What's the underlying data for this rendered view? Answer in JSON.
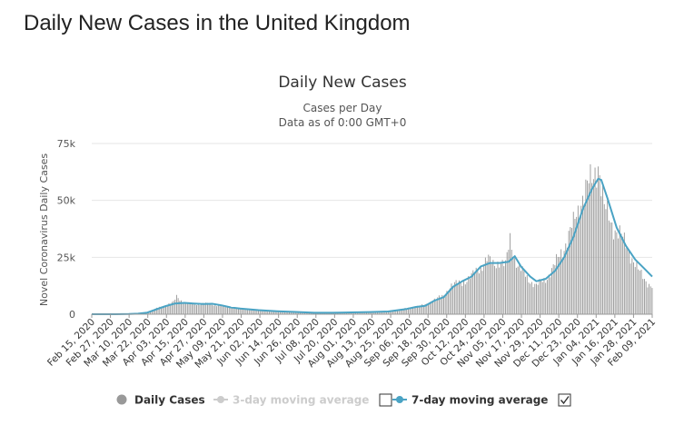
{
  "page": {
    "heading": "Daily New Cases in the United Kingdom"
  },
  "chart_data": {
    "type": "bar",
    "title": "Daily New Cases",
    "subtitle_lines": [
      "Cases per Day",
      "Data as of 0:00 GMT+0"
    ],
    "xlabel": "",
    "ylabel": "Novel Coronavirus Daily Cases",
    "ylim": [
      0,
      75000
    ],
    "y_ticks": [
      0,
      25000,
      50000,
      75000
    ],
    "y_tick_labels": [
      "0",
      "25k",
      "50k",
      "75k"
    ],
    "x_range": [
      "2020-02-15",
      "2021-02-12"
    ],
    "x_tick_labels": [
      "Feb 15, 2020",
      "Feb 27, 2020",
      "Mar 10, 2020",
      "Mar 22, 2020",
      "Apr 03, 2020",
      "Apr 15, 2020",
      "Apr 27, 2020",
      "May 09, 2020",
      "May 21, 2020",
      "Jun 02, 2020",
      "Jun 14, 2020",
      "Jun 26, 2020",
      "Jul 08, 2020",
      "Jul 20, 2020",
      "Aug 01, 2020",
      "Aug 13, 2020",
      "Aug 25, 2020",
      "Sep 06, 2020",
      "Sep 18, 2020",
      "Sep 30, 2020",
      "Oct 12, 2020",
      "Oct 24, 2020",
      "Nov 05, 2020",
      "Nov 17, 2020",
      "Nov 29, 2020",
      "Dec 11, 2020",
      "Dec 23, 2020",
      "Jan 04, 2021",
      "Jan 16, 2021",
      "Jan 28, 2021",
      "Feb 09, 2021"
    ],
    "grid": true,
    "legend_position": "bottom-center",
    "series": [
      {
        "name": "Daily Cases",
        "kind": "bar",
        "color": "#999999",
        "visible": true,
        "points": [
          [
            "2020-02-15",
            0
          ],
          [
            "2020-03-01",
            20
          ],
          [
            "2020-03-10",
            100
          ],
          [
            "2020-03-15",
            300
          ],
          [
            "2020-03-22",
            900
          ],
          [
            "2020-03-28",
            2500
          ],
          [
            "2020-04-03",
            4000
          ],
          [
            "2020-04-08",
            5200
          ],
          [
            "2020-04-10",
            7800
          ],
          [
            "2020-04-15",
            4900
          ],
          [
            "2020-04-22",
            4500
          ],
          [
            "2020-04-27",
            4600
          ],
          [
            "2020-05-02",
            4500
          ],
          [
            "2020-05-09",
            3700
          ],
          [
            "2020-05-15",
            3000
          ],
          [
            "2020-05-21",
            2500
          ],
          [
            "2020-06-02",
            1700
          ],
          [
            "2020-06-14",
            1200
          ],
          [
            "2020-06-26",
            900
          ],
          [
            "2020-07-08",
            600
          ],
          [
            "2020-07-20",
            650
          ],
          [
            "2020-08-01",
            800
          ],
          [
            "2020-08-13",
            1000
          ],
          [
            "2020-08-25",
            1200
          ],
          [
            "2020-09-06",
            2500
          ],
          [
            "2020-09-12",
            3400
          ],
          [
            "2020-09-18",
            4000
          ],
          [
            "2020-09-24",
            6500
          ],
          [
            "2020-09-30",
            8000
          ],
          [
            "2020-10-04",
            12500
          ],
          [
            "2020-10-12",
            14000
          ],
          [
            "2020-10-18",
            16500
          ],
          [
            "2020-10-24",
            21000
          ],
          [
            "2020-10-28",
            24000
          ],
          [
            "2020-11-01",
            22000
          ],
          [
            "2020-11-05",
            23500
          ],
          [
            "2020-11-09",
            21000
          ],
          [
            "2020-11-12",
            33000
          ],
          [
            "2020-11-17",
            21000
          ],
          [
            "2020-11-23",
            16000
          ],
          [
            "2020-11-29",
            12500
          ],
          [
            "2020-12-05",
            15500
          ],
          [
            "2020-12-11",
            21500
          ],
          [
            "2020-12-17",
            30000
          ],
          [
            "2020-12-23",
            39000
          ],
          [
            "2020-12-29",
            53000
          ],
          [
            "2021-01-04",
            58000
          ],
          [
            "2021-01-08",
            68000
          ],
          [
            "2021-01-12",
            46000
          ],
          [
            "2021-01-16",
            41000
          ],
          [
            "2021-01-22",
            35000
          ],
          [
            "2021-01-28",
            28000
          ],
          [
            "2021-02-03",
            19000
          ],
          [
            "2021-02-09",
            14000
          ],
          [
            "2021-02-12",
            12000
          ]
        ]
      },
      {
        "name": "3-day moving average",
        "kind": "line",
        "color": "#cccccc",
        "visible": false,
        "points": []
      },
      {
        "name": "7-day moving average",
        "kind": "line",
        "color": "#4aa3c4",
        "visible": true,
        "points": [
          [
            "2020-02-15",
            0
          ],
          [
            "2020-03-01",
            10
          ],
          [
            "2020-03-10",
            80
          ],
          [
            "2020-03-16",
            250
          ],
          [
            "2020-03-22",
            700
          ],
          [
            "2020-03-28",
            2200
          ],
          [
            "2020-04-03",
            3600
          ],
          [
            "2020-04-09",
            4700
          ],
          [
            "2020-04-15",
            5000
          ],
          [
            "2020-04-21",
            4700
          ],
          [
            "2020-04-27",
            4500
          ],
          [
            "2020-05-03",
            4600
          ],
          [
            "2020-05-09",
            3900
          ],
          [
            "2020-05-15",
            3000
          ],
          [
            "2020-05-21",
            2500
          ],
          [
            "2020-06-02",
            1800
          ],
          [
            "2020-06-14",
            1300
          ],
          [
            "2020-06-26",
            1000
          ],
          [
            "2020-07-08",
            650
          ],
          [
            "2020-07-20",
            650
          ],
          [
            "2020-08-01",
            800
          ],
          [
            "2020-08-13",
            950
          ],
          [
            "2020-08-25",
            1200
          ],
          [
            "2020-09-06",
            2300
          ],
          [
            "2020-09-12",
            3200
          ],
          [
            "2020-09-18",
            3700
          ],
          [
            "2020-09-24",
            6000
          ],
          [
            "2020-09-30",
            7500
          ],
          [
            "2020-10-06",
            12000
          ],
          [
            "2020-10-12",
            14500
          ],
          [
            "2020-10-18",
            16500
          ],
          [
            "2020-10-24",
            21000
          ],
          [
            "2020-10-30",
            22500
          ],
          [
            "2020-11-05",
            22500
          ],
          [
            "2020-11-11",
            23000
          ],
          [
            "2020-11-15",
            25500
          ],
          [
            "2020-11-19",
            21000
          ],
          [
            "2020-11-25",
            16500
          ],
          [
            "2020-11-29",
            14500
          ],
          [
            "2020-12-05",
            15500
          ],
          [
            "2020-12-11",
            19000
          ],
          [
            "2020-12-17",
            25000
          ],
          [
            "2020-12-23",
            34000
          ],
          [
            "2020-12-29",
            46000
          ],
          [
            "2021-01-04",
            55000
          ],
          [
            "2021-01-08",
            59500
          ],
          [
            "2021-01-10",
            59000
          ],
          [
            "2021-01-14",
            51000
          ],
          [
            "2021-01-20",
            38000
          ],
          [
            "2021-01-26",
            30000
          ],
          [
            "2021-02-01",
            24000
          ],
          [
            "2021-02-07",
            20000
          ],
          [
            "2021-02-12",
            16500
          ]
        ]
      }
    ],
    "legend": [
      {
        "label": "Daily Cases",
        "marker": "circle",
        "color": "#999999",
        "checkbox": false,
        "checked": false,
        "active": true
      },
      {
        "label": "3-day moving average",
        "marker": "line-circle",
        "color": "#cccccc",
        "checkbox": true,
        "checked": false,
        "active": false
      },
      {
        "label": "7-day moving average",
        "marker": "line-circle",
        "color": "#4aa3c4",
        "checkbox": true,
        "checked": true,
        "active": true
      }
    ]
  }
}
